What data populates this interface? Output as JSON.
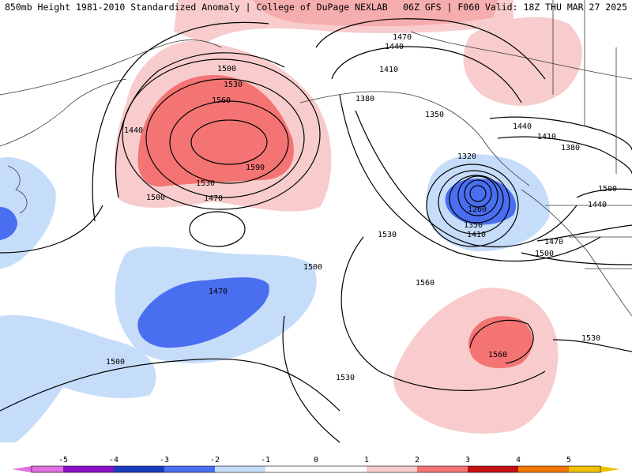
{
  "header": {
    "left": "850mb Height 1981-2010 Standardized Anomaly | College of DuPage NEXLAB",
    "right": "06Z GFS | F060 Valid: 18Z THU MAR 27 2025"
  },
  "colors": {
    "neg5": "#e070e0",
    "neg4": "#8a10c8",
    "neg3": "#1a3cc0",
    "neg2": "#4a6ef0",
    "neg1": "#c6ddfa",
    "zero": "#ffffff",
    "pos1": "#f8cccc",
    "pos2": "#f47474",
    "pos3": "#c41010",
    "pos4": "#f07800",
    "pos5": "#f0c000",
    "contour": "#000000",
    "coast": "#3a3a3a"
  },
  "colorbar": {
    "ticks": [
      "-5",
      "-4",
      "-3",
      "-2",
      "-1",
      "0",
      "1",
      "2",
      "3",
      "4",
      "5"
    ]
  },
  "contour_labels": [
    "1470",
    "1440",
    "1410",
    "1380",
    "1350",
    "1320",
    "1260",
    "1350",
    "1410",
    "1500",
    "1530",
    "1560",
    "1590",
    "1440",
    "1500",
    "1530",
    "1470",
    "1500",
    "1470",
    "1530",
    "1560",
    "1500",
    "1560",
    "1530",
    "1530",
    "1500",
    "1440",
    "1410",
    "1380",
    "1440",
    "1470",
    "1500"
  ]
}
